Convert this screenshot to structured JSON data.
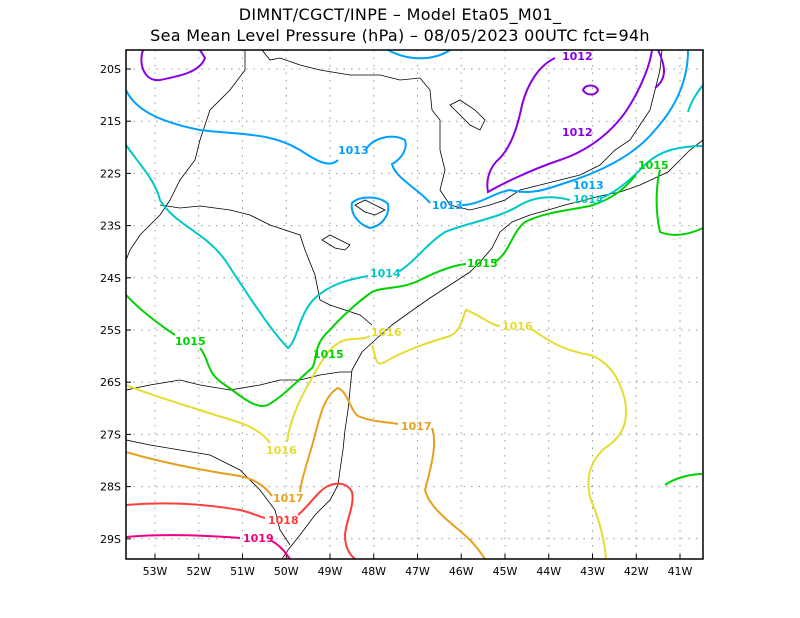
{
  "title": {
    "line1": "DIMNT/CGCT/INPE –  Model Eta05_M01_",
    "line2": "Sea Mean Level Pressure (hPa) – 08/05/2023 00UTC fct=94h"
  },
  "axes": {
    "lon_labels": [
      "53W",
      "52W",
      "51W",
      "50W",
      "49W",
      "48W",
      "47W",
      "46W",
      "45W",
      "44W",
      "43W",
      "42W",
      "41W"
    ],
    "lat_labels": [
      "20S",
      "21S",
      "22S",
      "23S",
      "24S",
      "25S",
      "26S",
      "27S",
      "28S",
      "29S"
    ]
  },
  "contours": [
    {
      "value": "1012",
      "color": "#8a00e0",
      "labels": [
        "1012",
        "1012"
      ]
    },
    {
      "value": "1013",
      "color": "#00a0ff",
      "labels": [
        "1013",
        "1013",
        "1013"
      ]
    },
    {
      "value": "1014",
      "color": "#00c8c8",
      "labels": [
        "1014",
        "1014"
      ]
    },
    {
      "value": "1015",
      "color": "#00d200",
      "labels": [
        "1015",
        "1015",
        "1015",
        "1015"
      ]
    },
    {
      "value": "1016",
      "color": "#e6dc32",
      "labels": [
        "1016",
        "1016",
        "1016"
      ]
    },
    {
      "value": "1017",
      "color": "#e6a020",
      "labels": [
        "1017",
        "1017"
      ]
    },
    {
      "value": "1018",
      "color": "#ff3c3c",
      "labels": [
        "1018"
      ]
    },
    {
      "value": "1019",
      "color": "#f00082",
      "labels": [
        "1019"
      ]
    }
  ]
}
